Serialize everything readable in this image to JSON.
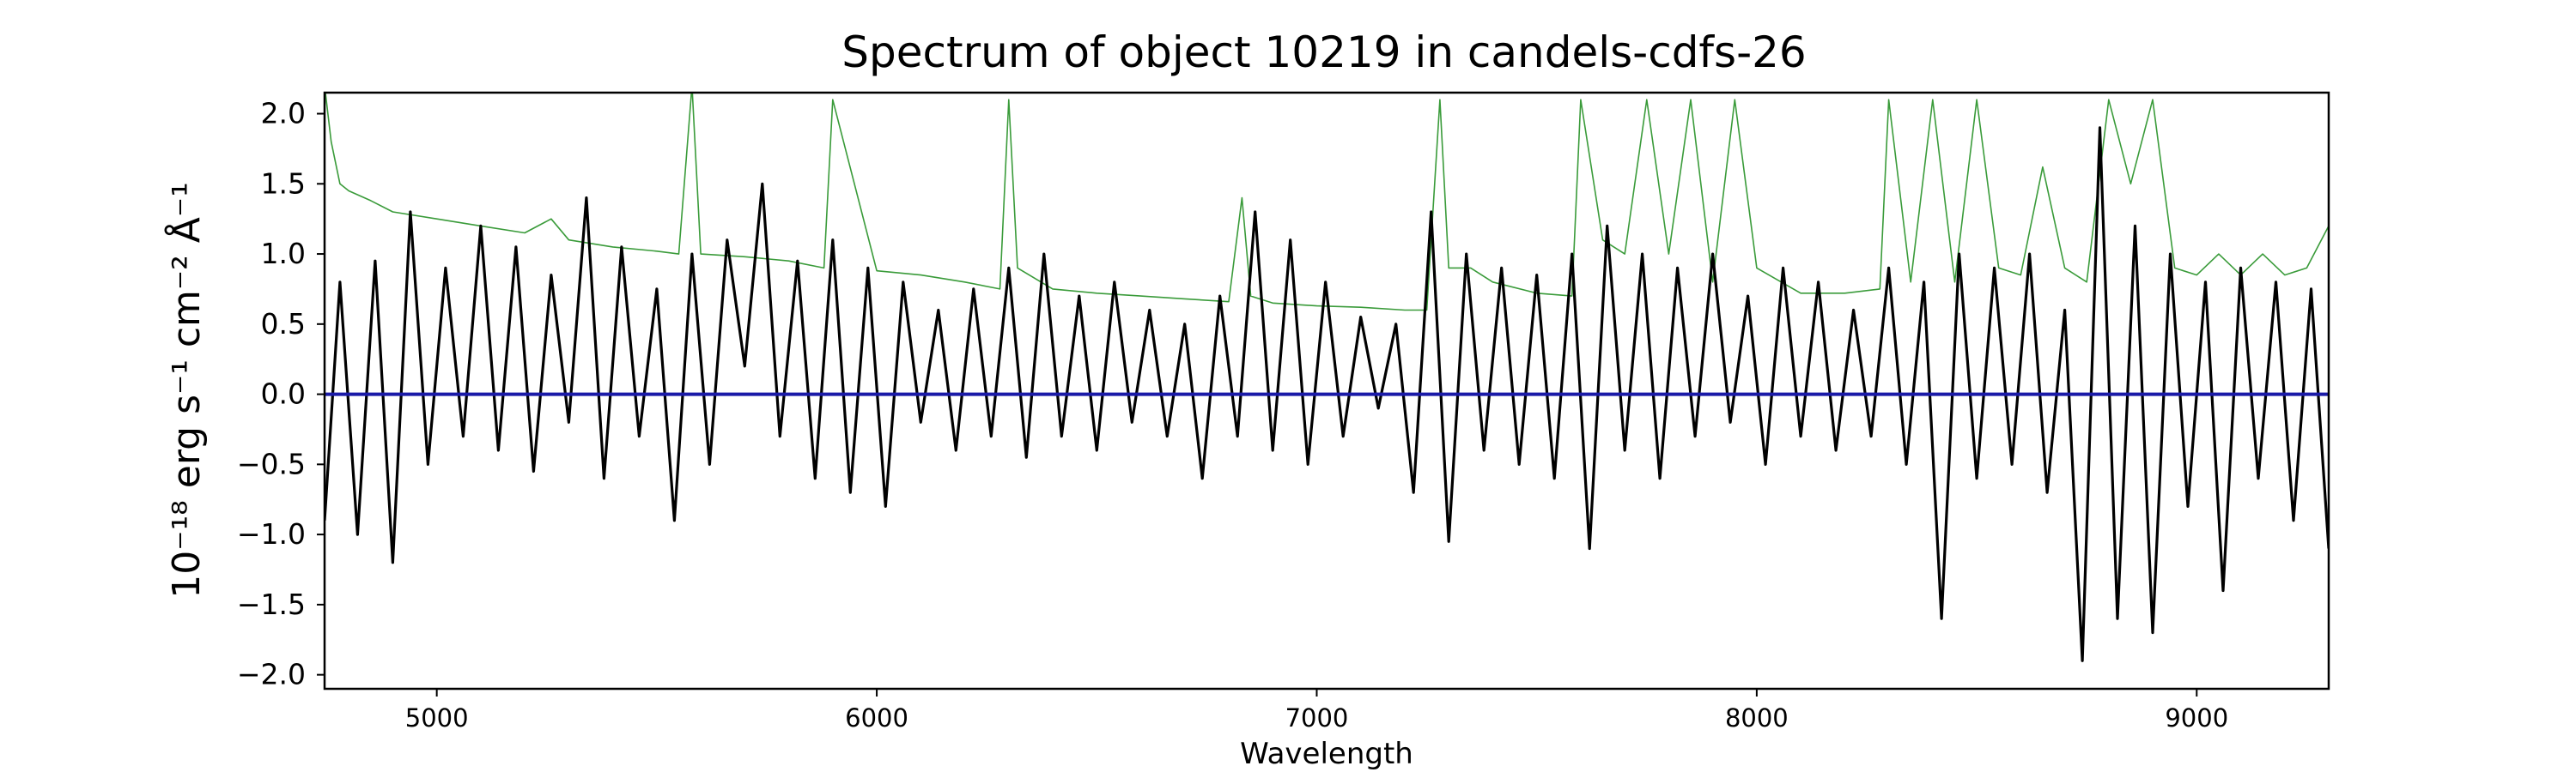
{
  "chart_data": {
    "type": "line",
    "title": "Spectrum of object 10219 in candels-cdfs-26",
    "xlabel": "Wavelength",
    "ylabel": "10⁻¹⁸ erg s⁻¹ cm⁻² Å⁻¹",
    "xlim": [
      4745,
      9300
    ],
    "ylim": [
      -2.1,
      2.15
    ],
    "xticks": [
      5000,
      6000,
      7000,
      8000,
      9000
    ],
    "yticks": [
      -2.0,
      -1.5,
      -1.0,
      -0.5,
      0.0,
      0.5,
      1.0,
      1.5,
      2.0
    ],
    "ytick_labels": [
      "−2.0",
      "−1.5",
      "−1.0",
      "−0.5",
      "0.0",
      "0.5",
      "1.0",
      "1.5",
      "2.0"
    ],
    "grid": false,
    "series": [
      {
        "role": "spectrum",
        "color": "#000000",
        "x": [
          4745,
          4780,
          4820,
          4860,
          4900,
          4940,
          4980,
          5020,
          5060,
          5100,
          5140,
          5180,
          5220,
          5260,
          5300,
          5340,
          5380,
          5420,
          5460,
          5500,
          5540,
          5580,
          5620,
          5660,
          5700,
          5740,
          5780,
          5820,
          5860,
          5900,
          5940,
          5980,
          6020,
          6060,
          6100,
          6140,
          6180,
          6220,
          6260,
          6300,
          6340,
          6380,
          6420,
          6460,
          6500,
          6540,
          6580,
          6620,
          6660,
          6700,
          6740,
          6780,
          6820,
          6860,
          6900,
          6940,
          6980,
          7020,
          7060,
          7100,
          7140,
          7180,
          7220,
          7260,
          7300,
          7340,
          7380,
          7420,
          7460,
          7500,
          7540,
          7580,
          7620,
          7660,
          7700,
          7740,
          7780,
          7820,
          7860,
          7900,
          7940,
          7980,
          8020,
          8060,
          8100,
          8140,
          8180,
          8220,
          8260,
          8300,
          8340,
          8380,
          8420,
          8460,
          8500,
          8540,
          8580,
          8620,
          8660,
          8700,
          8740,
          8780,
          8820,
          8860,
          8900,
          8940,
          8980,
          9020,
          9060,
          9100,
          9140,
          9180,
          9220,
          9260,
          9300
        ],
        "y": [
          -0.9,
          0.8,
          -1.0,
          0.95,
          -1.2,
          1.3,
          -0.5,
          0.9,
          -0.3,
          1.2,
          -0.4,
          1.05,
          -0.55,
          0.85,
          -0.2,
          1.4,
          -0.6,
          1.05,
          -0.3,
          0.75,
          -0.9,
          1.0,
          -0.5,
          1.1,
          0.2,
          1.5,
          -0.3,
          0.95,
          -0.6,
          1.1,
          -0.7,
          0.9,
          -0.8,
          0.8,
          -0.2,
          0.6,
          -0.4,
          0.75,
          -0.3,
          0.9,
          -0.45,
          1.0,
          -0.3,
          0.7,
          -0.4,
          0.8,
          -0.2,
          0.6,
          -0.3,
          0.5,
          -0.6,
          0.7,
          -0.3,
          1.3,
          -0.4,
          1.1,
          -0.5,
          0.8,
          -0.3,
          0.55,
          -0.1,
          0.5,
          -0.7,
          1.3,
          -1.05,
          1.0,
          -0.4,
          0.9,
          -0.5,
          0.85,
          -0.6,
          1.0,
          -1.1,
          1.2,
          -0.4,
          1.0,
          -0.6,
          0.9,
          -0.3,
          1.0,
          -0.2,
          0.7,
          -0.5,
          0.9,
          -0.3,
          0.8,
          -0.4,
          0.6,
          -0.3,
          0.9,
          -0.5,
          0.8,
          -1.6,
          1.0,
          -0.6,
          0.9,
          -0.5,
          1.0,
          -0.7,
          0.6,
          -1.9,
          1.9,
          -1.6,
          1.2,
          -1.7,
          1.0,
          -0.8,
          0.8,
          -1.4,
          0.9,
          -0.6,
          0.8,
          -0.9,
          0.75,
          -1.1
        ]
      },
      {
        "role": "error",
        "color": "#3a9b3a",
        "x": [
          4745,
          4760,
          4780,
          4800,
          4850,
          4900,
          5000,
          5100,
          5200,
          5260,
          5300,
          5400,
          5500,
          5550,
          5580,
          5600,
          5700,
          5800,
          5880,
          5900,
          6000,
          6100,
          6200,
          6280,
          6300,
          6320,
          6400,
          6500,
          6600,
          6700,
          6800,
          6830,
          6850,
          6900,
          7000,
          7100,
          7200,
          7250,
          7280,
          7300,
          7350,
          7400,
          7500,
          7580,
          7600,
          7650,
          7700,
          7750,
          7800,
          7850,
          7900,
          7950,
          8000,
          8100,
          8200,
          8280,
          8300,
          8350,
          8400,
          8450,
          8500,
          8550,
          8600,
          8650,
          8700,
          8750,
          8800,
          8850,
          8900,
          8950,
          9000,
          9050,
          9100,
          9150,
          9200,
          9250,
          9300
        ],
        "y": [
          2.2,
          1.8,
          1.5,
          1.45,
          1.38,
          1.3,
          1.25,
          1.2,
          1.15,
          1.25,
          1.1,
          1.05,
          1.02,
          1.0,
          2.2,
          1.0,
          0.98,
          0.95,
          0.9,
          2.1,
          0.88,
          0.85,
          0.8,
          0.75,
          2.1,
          0.9,
          0.75,
          0.72,
          0.7,
          0.68,
          0.66,
          1.4,
          0.7,
          0.65,
          0.63,
          0.62,
          0.6,
          0.6,
          2.1,
          0.9,
          0.9,
          0.8,
          0.72,
          0.7,
          2.1,
          1.1,
          1.0,
          2.1,
          1.0,
          2.1,
          0.8,
          2.1,
          0.9,
          0.72,
          0.72,
          0.75,
          2.1,
          0.8,
          2.1,
          0.8,
          2.1,
          0.9,
          0.85,
          1.62,
          0.9,
          0.8,
          2.1,
          1.5,
          2.1,
          0.9,
          0.85,
          1.0,
          0.85,
          1.0,
          0.85,
          0.9,
          1.2
        ]
      },
      {
        "role": "model",
        "color": "#1a1aa8",
        "x": [
          4745,
          9300
        ],
        "y": [
          0.0,
          0.0
        ]
      }
    ]
  }
}
